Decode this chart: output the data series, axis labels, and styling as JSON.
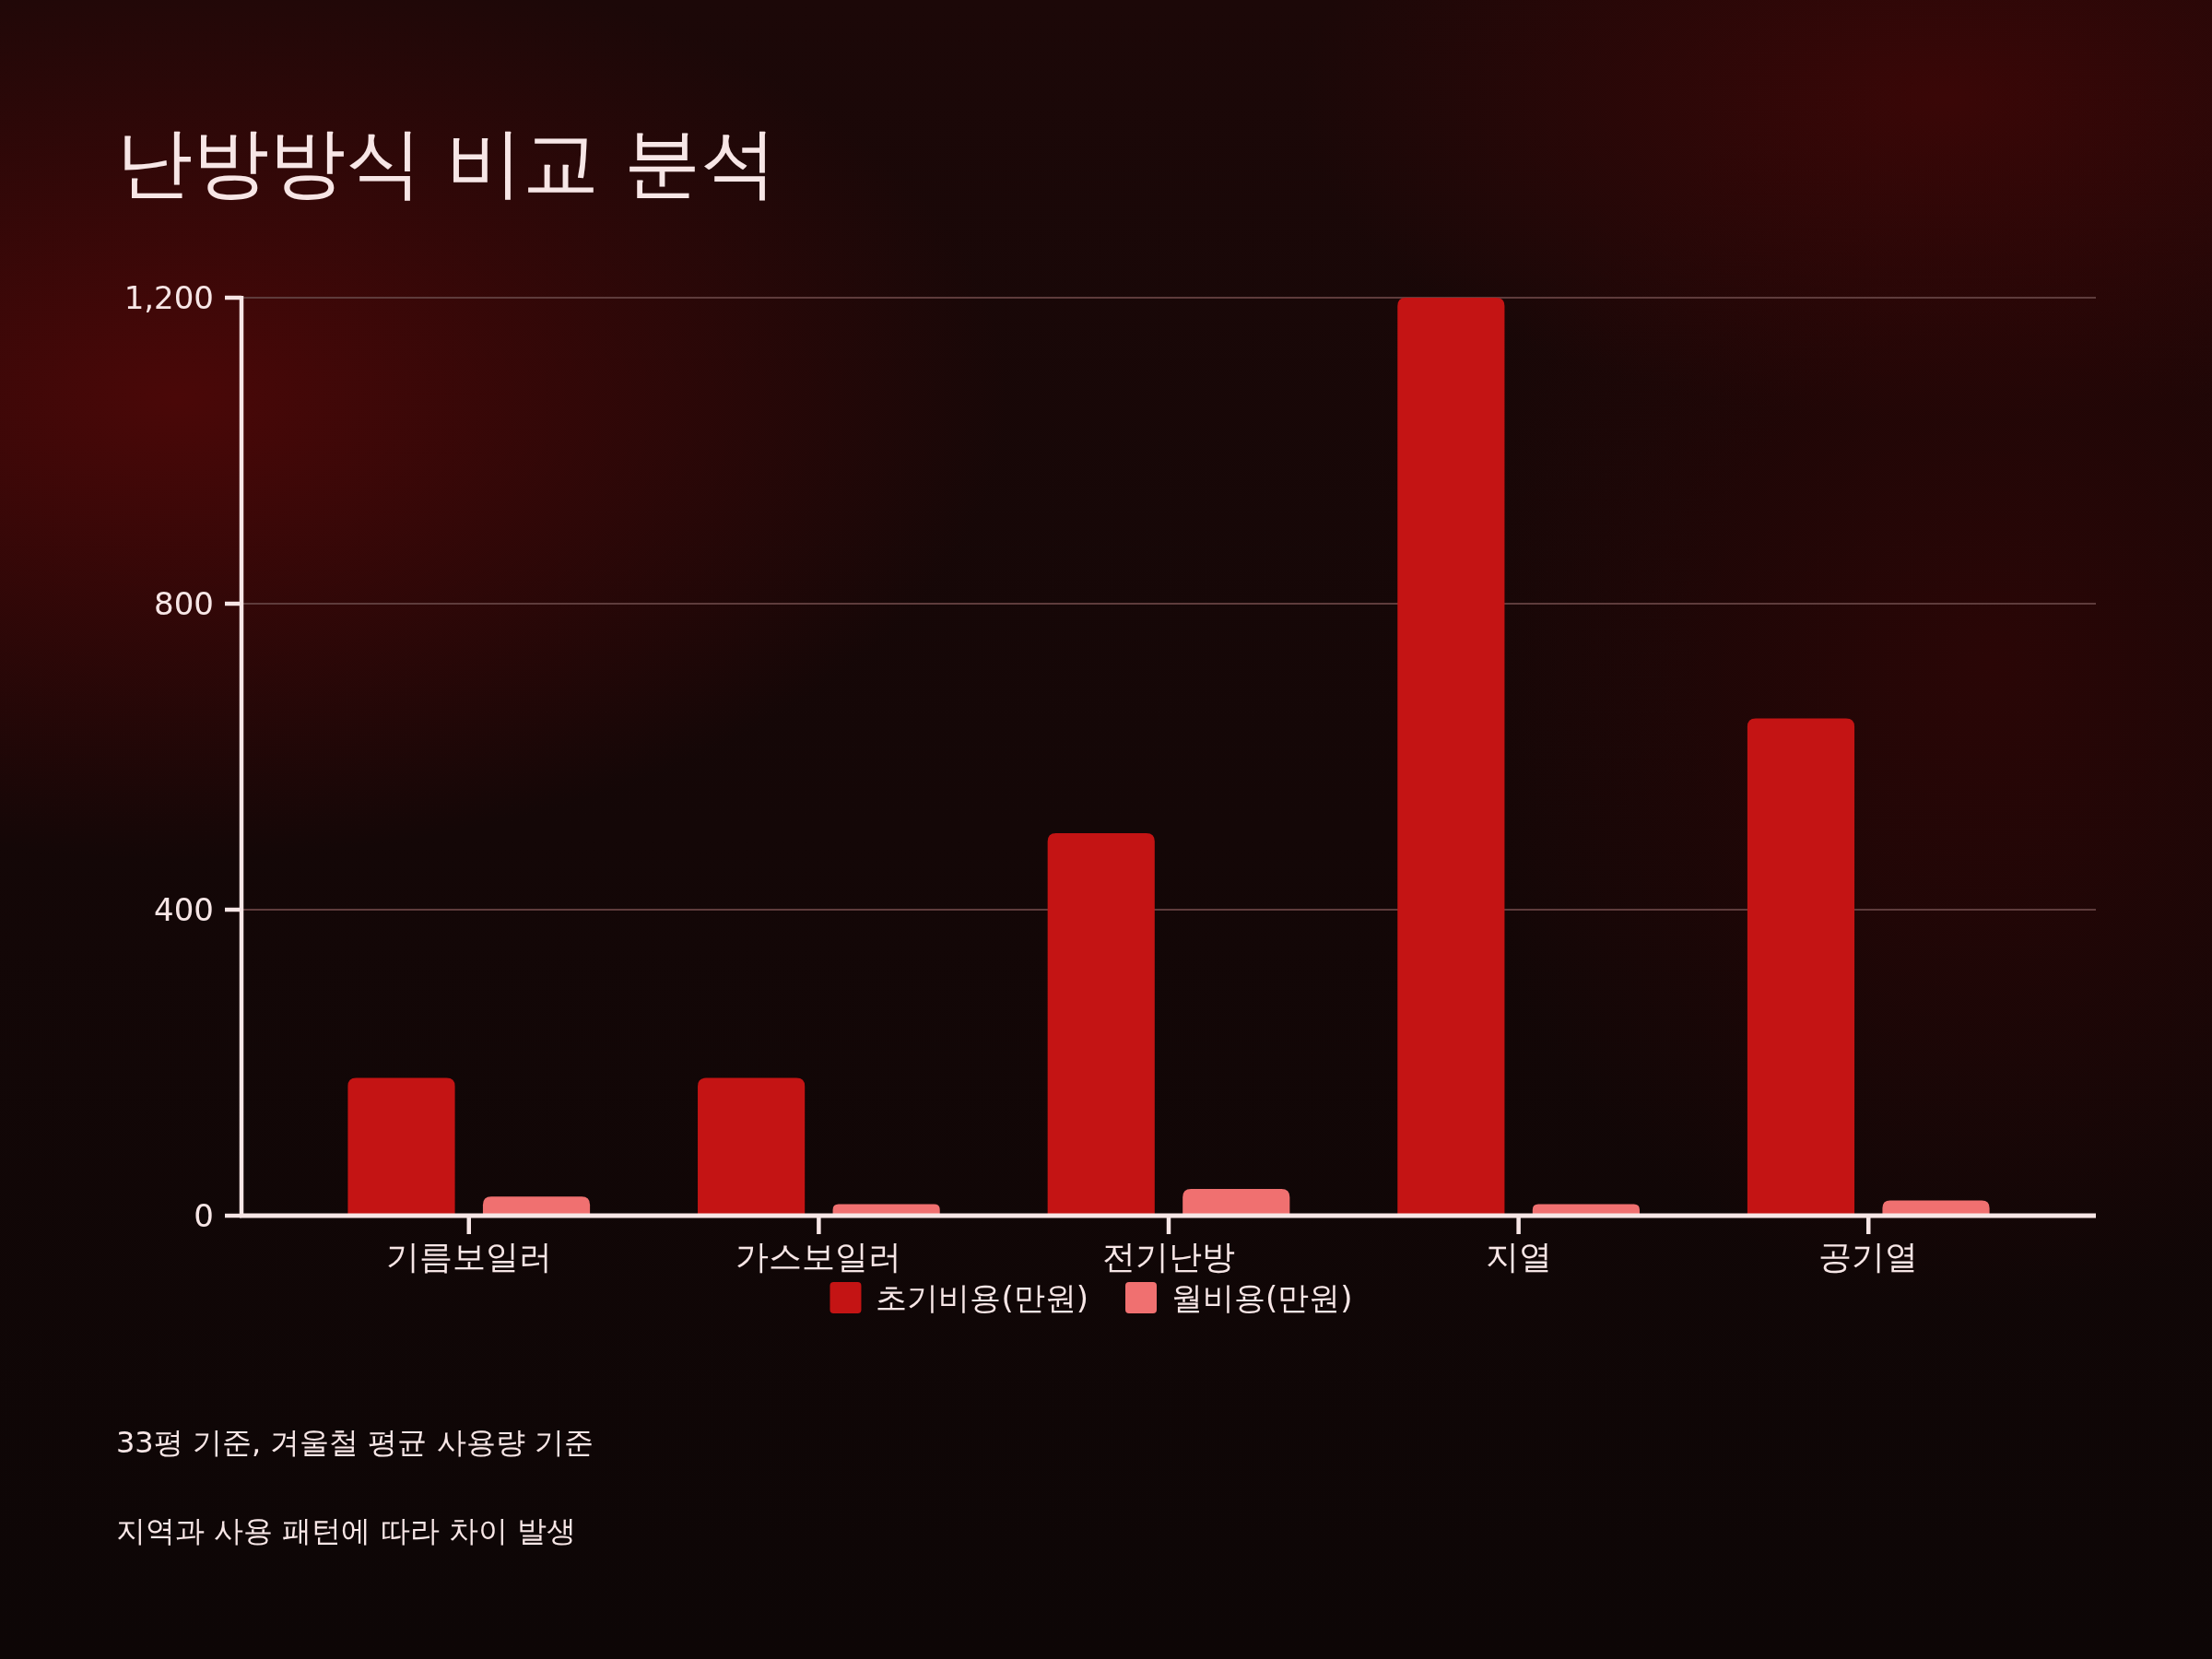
{
  "chart_data": {
    "type": "bar",
    "title": "난방방식 비교 분석",
    "categories": [
      "기름보일러",
      "가스보일러",
      "전기난방",
      "지열",
      "공기열"
    ],
    "series": [
      {
        "name": "초기비용(만원)",
        "color": "#c41414",
        "values": [
          180,
          180,
          500,
          1200,
          650
        ]
      },
      {
        "name": "월비용(만원)",
        "color": "#f07070",
        "values": [
          25,
          15,
          35,
          15,
          20
        ]
      }
    ],
    "ylim": [
      0,
      1200
    ],
    "yticks": [
      0,
      400,
      800,
      {
        "value": 1200,
        "label": "1,200"
      }
    ],
    "grid": "y",
    "legend": "bottom",
    "annotations": [
      "33평 기준, 겨울철 평균 사용량 기준",
      "지역과 사용 패턴에 따라 차이 발생"
    ]
  }
}
